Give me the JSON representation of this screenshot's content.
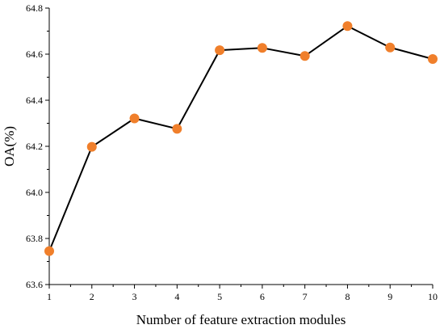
{
  "chart_data": {
    "type": "line",
    "title": "",
    "xlabel": "Number of feature extraction modules",
    "ylabel": "OA(%)",
    "x": [
      1,
      2,
      3,
      4,
      5,
      6,
      7,
      8,
      9,
      10
    ],
    "series": [
      {
        "values": [
          63.745,
          64.198,
          64.321,
          64.276,
          64.617,
          64.627,
          64.592,
          64.722,
          64.629,
          64.579
        ]
      }
    ],
    "xlim": [
      1,
      10
    ],
    "ylim": [
      63.6,
      64.8
    ],
    "xticks": [
      "1",
      "2",
      "3",
      "4",
      "5",
      "6",
      "7",
      "8",
      "9",
      "10"
    ],
    "yticks": [
      "63.6",
      "63.8",
      "64.0",
      "64.2",
      "64.4",
      "64.6",
      "64.8"
    ],
    "yticks_values": [
      63.6,
      63.8,
      64.0,
      64.2,
      64.4,
      64.6,
      64.8
    ],
    "grid": false,
    "legend": "none",
    "colors": {
      "line": "#000000",
      "marker": "#F07F2B"
    }
  }
}
